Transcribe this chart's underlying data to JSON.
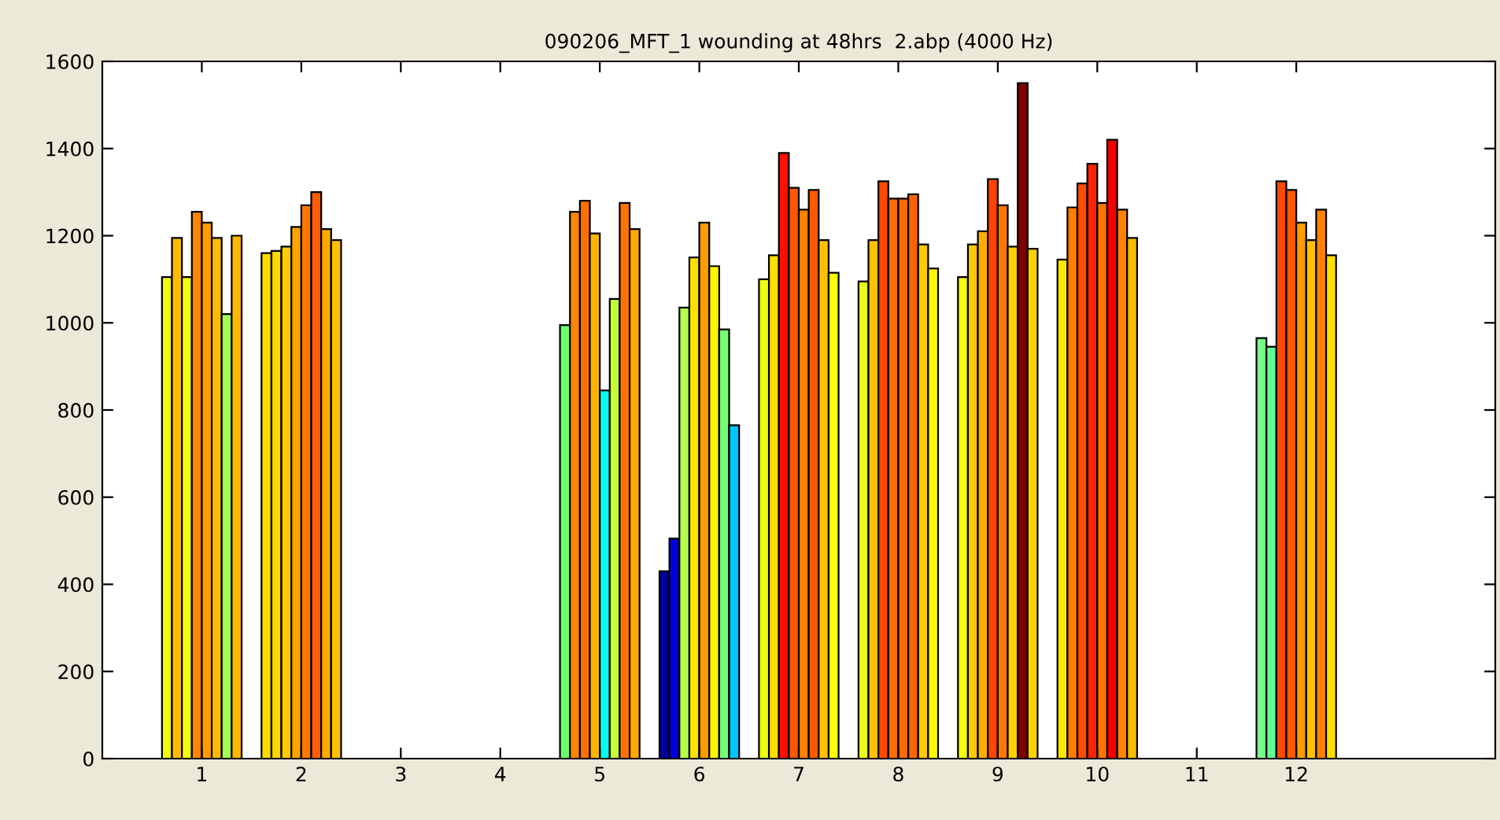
{
  "chart_data": {
    "type": "bar",
    "title": "090206_MFT_1 wounding at 48hrs  2.abp (4000 Hz)",
    "categories": [
      "1",
      "2",
      "3",
      "4",
      "5",
      "6",
      "7",
      "8",
      "9",
      "10",
      "11",
      "12"
    ],
    "ylim": [
      0,
      1600
    ],
    "yticks": [
      0,
      200,
      400,
      600,
      800,
      1000,
      1200,
      1400,
      1600
    ],
    "grid": false,
    "series": [
      {
        "values": [
          1105,
          1160,
          null,
          null,
          995,
          430,
          1100,
          1095,
          1105,
          1145,
          null,
          965
        ],
        "colors": [
          "#f3ff0c",
          "#ffda00",
          null,
          null,
          "#6eff6e",
          "#00009a",
          "#eeff11",
          "#eaff15",
          "#f3ff0c",
          "#ffe800",
          null,
          "#76ff88"
        ]
      },
      {
        "values": [
          1195,
          1165,
          null,
          null,
          1255,
          505,
          1155,
          1190,
          1180,
          1265,
          null,
          945
        ],
        "colors": [
          "#ffbb00",
          "#ffd600",
          null,
          null,
          "#ff8600",
          "#0000dd",
          "#ffdf00",
          "#ffc000",
          "#ffc900",
          "#ff7d00",
          null,
          "#65ff9a"
        ]
      },
      {
        "values": [
          1105,
          1175,
          null,
          null,
          1280,
          1035,
          1390,
          1325,
          1210,
          1320,
          null,
          1325
        ],
        "colors": [
          "#f3ff0c",
          "#ffcd00",
          null,
          null,
          "#ff7000",
          "#b5ff4a",
          "#ff0f00",
          "#ff4800",
          "#ffae00",
          "#ff4d00",
          null,
          "#ff4800"
        ]
      },
      {
        "values": [
          1255,
          1220,
          null,
          null,
          1205,
          1150,
          1310,
          1285,
          1330,
          1365,
          null,
          1305
        ],
        "colors": [
          "#ff8600",
          "#ffa500",
          null,
          null,
          "#ffb300",
          "#ffe300",
          "#ff5500",
          "#ff6b00",
          "#ff4400",
          "#ff2400",
          null,
          "#ff5a00"
        ]
      },
      {
        "values": [
          1230,
          1270,
          null,
          null,
          845,
          1230,
          1260,
          1285,
          1270,
          1275,
          null,
          1230
        ],
        "colors": [
          "#ff9c00",
          "#ff7900",
          null,
          null,
          "#00fff3",
          "#ff9c00",
          "#ff8200",
          "#ff6b00",
          "#ff7900",
          "#ff7400",
          null,
          "#ff9c00"
        ]
      },
      {
        "values": [
          1195,
          1300,
          null,
          null,
          1055,
          1130,
          1305,
          1295,
          1175,
          1420,
          null,
          1190
        ],
        "colors": [
          "#ffbb00",
          "#ff5e00",
          null,
          null,
          "#c6ff38",
          "#fff500",
          "#ff5a00",
          "#ff6300",
          "#ffcd00",
          "#f30000",
          null,
          "#ffc000"
        ]
      },
      {
        "values": [
          1020,
          1215,
          null,
          null,
          1275,
          985,
          1190,
          1180,
          1550,
          1260,
          null,
          1260
        ],
        "colors": [
          "#a7ff57",
          "#ffa900",
          null,
          null,
          "#ff7400",
          "#76ff76",
          "#ffc000",
          "#ffc900",
          "#800000",
          "#ff8200",
          null,
          "#ff8200"
        ]
      },
      {
        "values": [
          1200,
          1190,
          null,
          null,
          1215,
          765,
          1115,
          1125,
          1170,
          1195,
          null,
          1155
        ],
        "colors": [
          "#ffb700",
          "#ffc000",
          null,
          null,
          "#ffa900",
          "#00c4ff",
          "#fcff03",
          "#fff900",
          "#ffd100",
          "#ffbb00",
          null,
          "#ffdf00"
        ]
      }
    ]
  }
}
